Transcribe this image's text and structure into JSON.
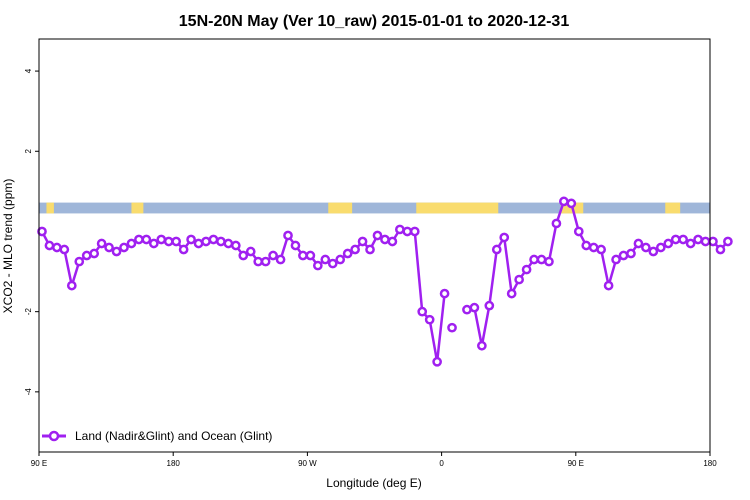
{
  "chart_data": {
    "type": "line",
    "title": "15N-20N May (Ver 10_raw)   2015-01-01 to 2020-12-31",
    "xlabel": "Longitude (deg E)",
    "ylabel": "XCO2 - MLO trend (ppm)",
    "xlim": [
      90,
      450
    ],
    "ylim": [
      -5.5,
      4.8
    ],
    "x_ticks": [
      90,
      180,
      270,
      360,
      450
    ],
    "x_tick_labels": [
      "90 E",
      "180",
      "90 W",
      "0",
      "90 E",
      "180"
    ],
    "x_tick_positions": [
      90,
      180,
      270,
      360,
      450,
      540
    ],
    "y_ticks": [
      -4,
      -2,
      2,
      4
    ],
    "y_tick_labels": [
      "-4",
      "-2",
      "2",
      "4"
    ],
    "legend_position": "bottom-left",
    "colors": {
      "series": "#a020f0",
      "map_ocean": "#9fb6d9",
      "map_land": "#f9dc6e"
    },
    "map_strip": {
      "y_range": [
        0.45,
        0.72
      ],
      "land_segments": [
        [
          95,
          100
        ],
        [
          152,
          160
        ],
        [
          284,
          300
        ],
        [
          343,
          398
        ],
        [
          440,
          455
        ],
        [
          510,
          520
        ]
      ]
    },
    "series": [
      {
        "name": "Land (Nadir&Glint) and Ocean (Glint)",
        "segments": [
          {
            "x": [
              92,
              97,
              102,
              107,
              112,
              117,
              122,
              127,
              132,
              137,
              142,
              147,
              152,
              157,
              162,
              167,
              172,
              177,
              182,
              187,
              192,
              197,
              202,
              207,
              212,
              217,
              222,
              227,
              232,
              237,
              242,
              247,
              252,
              257,
              262,
              267,
              272,
              277,
              282,
              287,
              292,
              297,
              302,
              307,
              312,
              317,
              322,
              327,
              332,
              337,
              342,
              347,
              352,
              357,
              362
            ],
            "y": [
              0.0,
              -0.35,
              -0.4,
              -0.45,
              -1.35,
              -0.75,
              -0.6,
              -0.55,
              -0.3,
              -0.4,
              -0.5,
              -0.4,
              -0.3,
              -0.2,
              -0.2,
              -0.3,
              -0.2,
              -0.25,
              -0.25,
              -0.45,
              -0.2,
              -0.3,
              -0.25,
              -0.2,
              -0.25,
              -0.3,
              -0.35,
              -0.6,
              -0.5,
              -0.75,
              -0.75,
              -0.6,
              -0.7,
              -0.1,
              -0.35,
              -0.6,
              -0.6,
              -0.85,
              -0.7,
              -0.8,
              -0.7,
              -0.55,
              -0.45,
              -0.25,
              -0.45,
              -0.1,
              -0.2,
              -0.25,
              0.05,
              0.0,
              0.0,
              -2.0,
              -2.2,
              -3.25,
              -1.55
            ]
          },
          {
            "x": [
              367
            ],
            "y": [
              -2.4
            ]
          },
          {
            "x": [
              377,
              382,
              387,
              392,
              397,
              402,
              407,
              412,
              417,
              422,
              427,
              432,
              437,
              442,
              447,
              452,
              457,
              462,
              467,
              472,
              477,
              482,
              487,
              492,
              497,
              502,
              507,
              512,
              517,
              522,
              527,
              532,
              537,
              542,
              547,
              552
            ],
            "y": [
              -1.95,
              -1.9,
              -2.85,
              -1.85,
              -0.45,
              -0.15,
              -1.55,
              -1.2,
              -0.95,
              -0.7,
              -0.7,
              -0.75,
              0.2,
              0.75,
              0.7,
              0.0,
              -0.35,
              -0.4,
              -0.45,
              -1.35,
              -0.7,
              -0.6,
              -0.55,
              -0.3,
              -0.4,
              -0.5,
              -0.4,
              -0.3,
              -0.2,
              -0.2,
              -0.3,
              -0.2,
              -0.25,
              -0.25,
              -0.45,
              -0.25
            ]
          }
        ]
      }
    ]
  }
}
